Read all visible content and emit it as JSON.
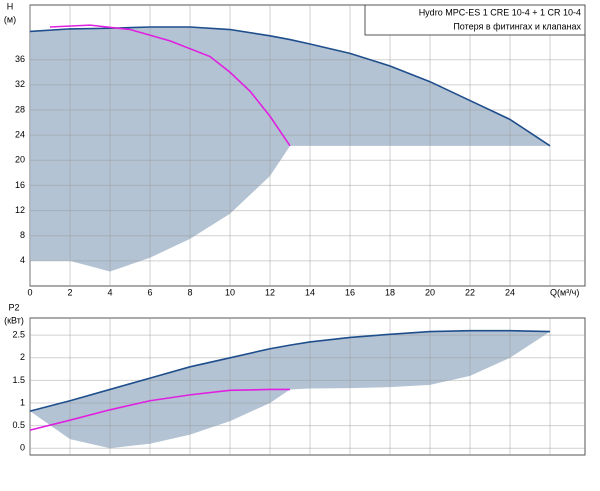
{
  "chart_data": [
    {
      "type": "line",
      "ylabel": [
        "H",
        "(м)"
      ],
      "legend": [
        "Hydro MPC-ES 1 CRE 10-4  +  1 CR 10-4",
        "Потеря в фитингах и клапанах"
      ],
      "xlim": [
        0,
        27.75
      ],
      "ylim": [
        0,
        44.7
      ],
      "xticks": [
        0,
        2,
        4,
        6,
        8,
        10,
        12,
        14,
        16,
        18,
        20,
        22,
        24,
        {
          "value": 26,
          "label": "Q(м³/ч)"
        }
      ],
      "yticks": [
        4,
        8,
        12,
        16,
        20,
        24,
        28,
        32,
        36
      ],
      "show_xtick_labels": true,
      "grid": true,
      "band": {
        "color": "#b3c3d3",
        "x": [
          0,
          2,
          4,
          6,
          8,
          10,
          12,
          13,
          14,
          16,
          18,
          20,
          22,
          24,
          26
        ],
        "upper": [
          40.5,
          40.9,
          41.0,
          41.2,
          41.2,
          40.8,
          39.8,
          39.2,
          38.5,
          37,
          35,
          32.5,
          29.5,
          26.5,
          22.3
        ],
        "lower": [
          4,
          4,
          2.3,
          4.5,
          7.5,
          11.5,
          17.5,
          22.3,
          22.3,
          22.3,
          22.3,
          22.3,
          22.3,
          22.3,
          22.3
        ],
        "edge": "#1f4e8c"
      },
      "series": [
        {
          "color": "#e020e0",
          "x": [
            1,
            3,
            5,
            7,
            9,
            10,
            11,
            12,
            13
          ],
          "values": [
            41.2,
            41.5,
            40.8,
            39,
            36.5,
            34,
            31,
            27,
            22.3
          ]
        }
      ]
    },
    {
      "type": "line",
      "ylabel": [
        "P2",
        "(кВт)"
      ],
      "xlim": [
        0,
        27.75
      ],
      "ylim": [
        -0.15,
        2.88
      ],
      "xticks": [
        0,
        2,
        4,
        6,
        8,
        10,
        12,
        14,
        16,
        18,
        20,
        22,
        24,
        26
      ],
      "yticks": [
        0,
        0.5,
        1,
        1.5,
        2,
        2.5
      ],
      "show_xtick_labels": false,
      "grid": true,
      "band": {
        "color": "#b3c3d3",
        "x": [
          0,
          2,
          4,
          6,
          8,
          10,
          12,
          13,
          14,
          16,
          18,
          20,
          22,
          24,
          26
        ],
        "upper": [
          0.82,
          1.05,
          1.3,
          1.55,
          1.8,
          2.0,
          2.2,
          2.28,
          2.35,
          2.45,
          2.52,
          2.58,
          2.6,
          2.6,
          2.58
        ],
        "lower": [
          0.82,
          0.2,
          0,
          0.1,
          0.3,
          0.6,
          1.0,
          1.3,
          1.32,
          1.33,
          1.35,
          1.4,
          1.6,
          2.0,
          2.58
        ],
        "edge": "#1f4e8c"
      },
      "series": [
        {
          "color": "#e020e0",
          "x": [
            0,
            2,
            4,
            6,
            8,
            10,
            12,
            13
          ],
          "values": [
            0.4,
            0.62,
            0.85,
            1.05,
            1.18,
            1.28,
            1.3,
            1.3
          ]
        }
      ]
    }
  ]
}
